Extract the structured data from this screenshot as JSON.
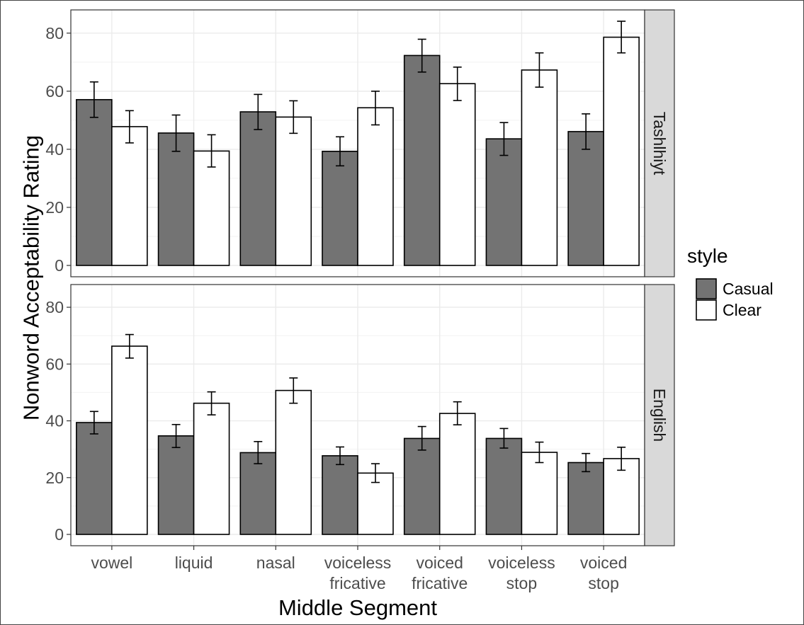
{
  "chart_data": {
    "type": "bar",
    "xlabel": "Middle Segment",
    "ylabel": "Nonword Acceptability Rating",
    "ylim": [
      0,
      88
    ],
    "yticks": [
      0,
      20,
      40,
      60,
      80
    ],
    "grid": true,
    "legend": {
      "title": "style",
      "position": "right"
    },
    "categories": [
      [
        "vowel"
      ],
      [
        "liquid"
      ],
      [
        "nasal"
      ],
      [
        "voiceless",
        "fricative"
      ],
      [
        "voiced",
        "fricative"
      ],
      [
        "voiceless",
        "stop"
      ],
      [
        "voiced",
        "stop"
      ]
    ],
    "series_styles": [
      {
        "name": "Casual",
        "color": "#737373"
      },
      {
        "name": "Clear",
        "color": "#ffffff"
      }
    ],
    "panels": [
      {
        "strip": "Tashlhiyt",
        "series": [
          {
            "name": "Casual",
            "values": [
              57.1,
              45.6,
              52.9,
              39.3,
              72.3,
              43.6,
              46.1
            ],
            "err_low": [
              51.0,
              39.3,
              46.8,
              34.3,
              66.6,
              37.9,
              40.0
            ],
            "err_high": [
              63.2,
              51.8,
              58.9,
              44.3,
              77.9,
              49.2,
              52.2
            ]
          },
          {
            "name": "Clear",
            "values": [
              47.8,
              39.4,
              51.1,
              54.3,
              62.6,
              67.3,
              78.6
            ],
            "err_low": [
              42.2,
              33.9,
              45.5,
              48.4,
              56.8,
              61.4,
              73.2
            ],
            "err_high": [
              53.3,
              45.0,
              56.7,
              60.0,
              68.3,
              73.2,
              84.1
            ]
          }
        ]
      },
      {
        "strip": "English",
        "series": [
          {
            "name": "Casual",
            "values": [
              39.4,
              34.7,
              28.8,
              27.7,
              33.8,
              33.8,
              25.3
            ],
            "err_low": [
              35.4,
              30.6,
              24.9,
              24.6,
              29.7,
              30.4,
              22.1
            ],
            "err_high": [
              43.3,
              38.7,
              32.7,
              30.8,
              38.0,
              37.3,
              28.5
            ]
          },
          {
            "name": "Clear",
            "values": [
              66.3,
              46.2,
              50.7,
              21.6,
              42.6,
              28.9,
              26.7
            ],
            "err_low": [
              62.1,
              42.1,
              46.2,
              18.3,
              38.6,
              25.3,
              22.6
            ],
            "err_high": [
              70.4,
              50.2,
              55.1,
              24.9,
              46.7,
              32.5,
              30.7
            ]
          }
        ]
      }
    ]
  }
}
